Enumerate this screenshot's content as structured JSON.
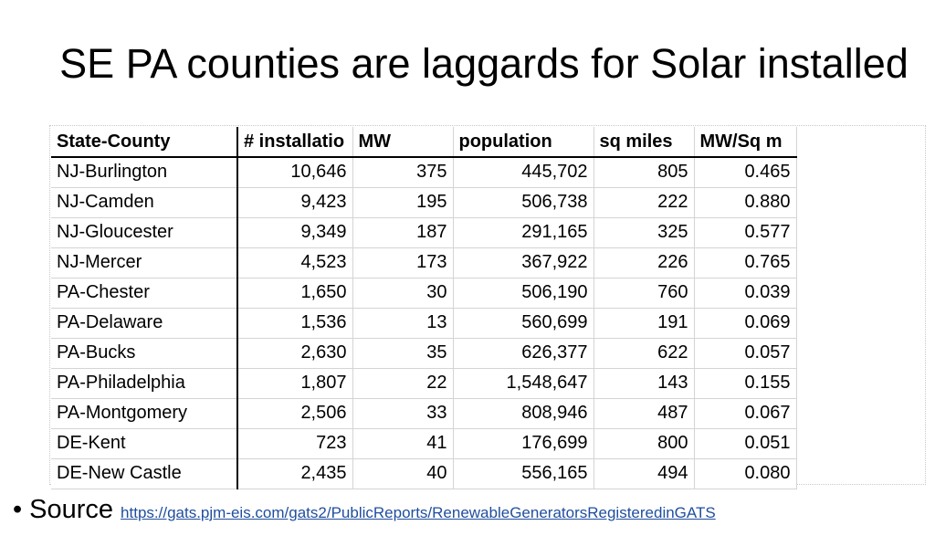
{
  "slide": {
    "title": "SE PA counties are laggards for Solar installed",
    "source_label": "Source",
    "source_url": "https://gats.pjm-eis.com/gats2/PublicReports/RenewableGeneratorsRegisteredinGATS"
  },
  "table": {
    "headers": [
      "State-County",
      "# installatio",
      "MW",
      "population",
      "sq miles",
      "MW/Sq m"
    ],
    "rows": [
      [
        "NJ-Burlington",
        "10,646",
        "375",
        "445,702",
        "805",
        "0.465"
      ],
      [
        "NJ-Camden",
        "9,423",
        "195",
        "506,738",
        "222",
        "0.880"
      ],
      [
        "NJ-Gloucester",
        "9,349",
        "187",
        "291,165",
        "325",
        "0.577"
      ],
      [
        "NJ-Mercer",
        "4,523",
        "173",
        "367,922",
        "226",
        "0.765"
      ],
      [
        "PA-Chester",
        "1,650",
        "30",
        "506,190",
        "760",
        "0.039"
      ],
      [
        "PA-Delaware",
        "1,536",
        "13",
        "560,699",
        "191",
        "0.069"
      ],
      [
        "PA-Bucks",
        "2,630",
        "35",
        "626,377",
        "622",
        "0.057"
      ],
      [
        "PA-Philadelphia",
        "1,807",
        "22",
        "1,548,647",
        "143",
        "0.155"
      ],
      [
        "PA-Montgomery",
        "2,506",
        "33",
        "808,946",
        "487",
        "0.067"
      ],
      [
        "DE-Kent",
        "723",
        "41",
        "176,699",
        "800",
        "0.051"
      ],
      [
        "DE-New Castle",
        "2,435",
        "40",
        "556,165",
        "494",
        "0.080"
      ]
    ]
  }
}
